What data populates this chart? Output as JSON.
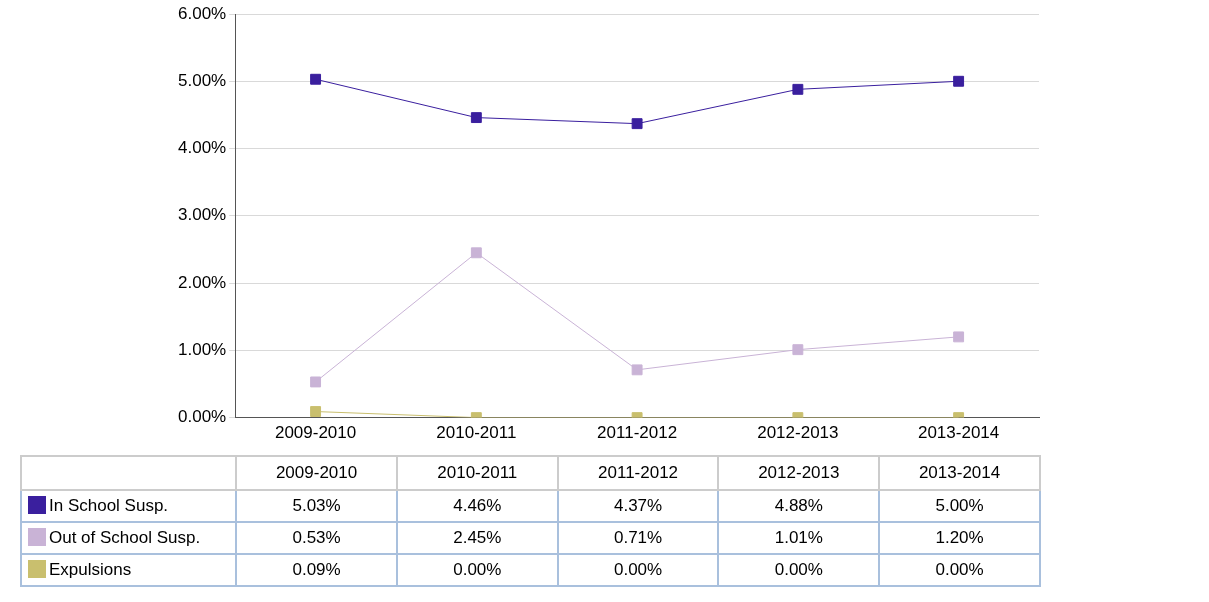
{
  "chart_data": {
    "type": "line",
    "categories": [
      "2009-2010",
      "2010-2011",
      "2011-2012",
      "2012-2013",
      "2013-2014"
    ],
    "series": [
      {
        "name": "In School Susp.",
        "color": "#3a1f9e",
        "values": [
          5.03,
          4.46,
          4.37,
          4.88,
          5.0
        ],
        "value_labels": [
          "5.03%",
          "4.46%",
          "4.37%",
          "4.88%",
          "5.00%"
        ]
      },
      {
        "name": "Out of School Susp.",
        "color": "#c9b3d6",
        "values": [
          0.53,
          2.45,
          0.71,
          1.01,
          1.2
        ],
        "value_labels": [
          "0.53%",
          "2.45%",
          "0.71%",
          "1.01%",
          "1.20%"
        ]
      },
      {
        "name": "Expulsions",
        "color": "#c9bf6e",
        "values": [
          0.09,
          0.0,
          0.0,
          0.0,
          0.0
        ],
        "value_labels": [
          "0.09%",
          "0.00%",
          "0.00%",
          "0.00%",
          "0.00%"
        ]
      }
    ],
    "ylim": [
      0,
      6
    ],
    "yticks": [
      {
        "value": 0,
        "label": "0.00%"
      },
      {
        "value": 1,
        "label": "1.00%"
      },
      {
        "value": 2,
        "label": "2.00%"
      },
      {
        "value": 3,
        "label": "3.00%"
      },
      {
        "value": 4,
        "label": "4.00%"
      },
      {
        "value": 5,
        "label": "5.00%"
      },
      {
        "value": 6,
        "label": "6.00%"
      }
    ],
    "grid": "y",
    "legend": "bottom",
    "marker": "square",
    "line_style": "solid"
  }
}
